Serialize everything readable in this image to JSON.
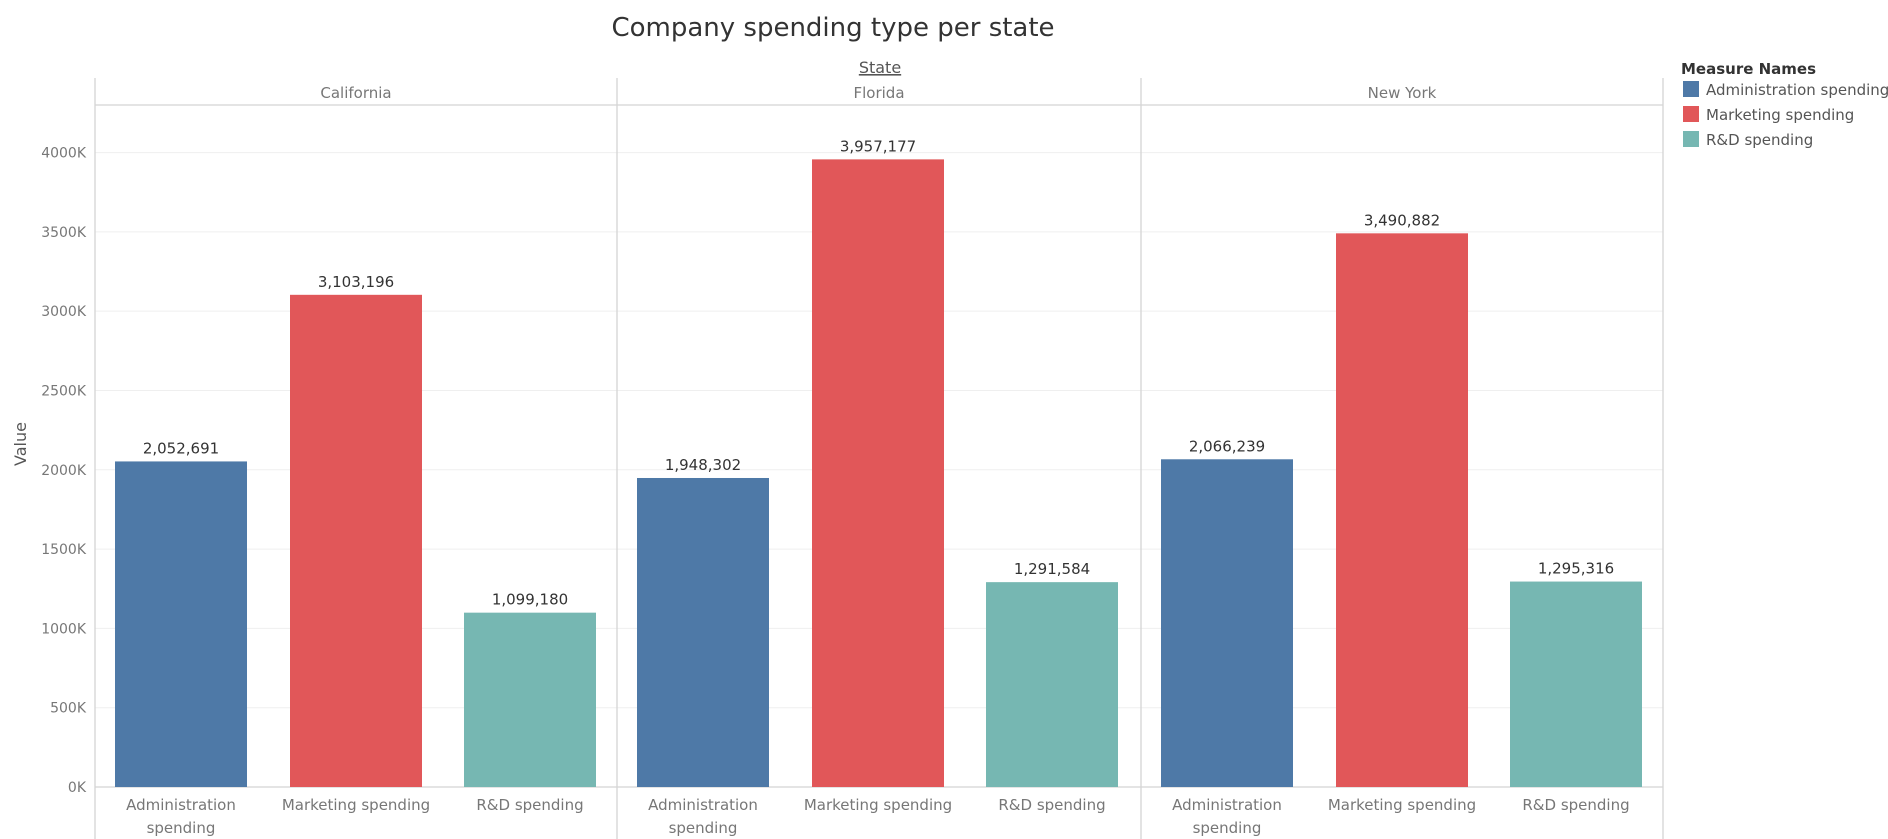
{
  "chart_data": {
    "type": "bar",
    "title": "Company spending type per state",
    "column_header": "State",
    "ylabel": "Value",
    "ylim": [
      0,
      4300000
    ],
    "yticks": [
      0,
      500000,
      1000000,
      1500000,
      2000000,
      2500000,
      3000000,
      3500000,
      4000000
    ],
    "ytick_labels": [
      "0K",
      "500K",
      "1000K",
      "1500K",
      "2000K",
      "2500K",
      "3000K",
      "3500K",
      "4000K"
    ],
    "grid": true,
    "categories": [
      "Administration spending",
      "Marketing spending",
      "R&D spending"
    ],
    "category_labels": [
      [
        "Administration",
        "spending"
      ],
      [
        "Marketing spending"
      ],
      [
        "R&D spending"
      ]
    ],
    "colors": [
      "#4e79a7",
      "#e15759",
      "#76b7b2"
    ],
    "panels": [
      {
        "name": "California",
        "values": [
          2052691,
          3103196,
          1099180
        ],
        "labels": [
          "2,052,691",
          "3,103,196",
          "1,099,180"
        ]
      },
      {
        "name": "Florida",
        "values": [
          1948302,
          3957177,
          1291584
        ],
        "labels": [
          "1,948,302",
          "3,957,177",
          "1,291,584"
        ]
      },
      {
        "name": "New York",
        "values": [
          2066239,
          3490882,
          1295316
        ],
        "labels": [
          "2,066,239",
          "3,490,882",
          "1,295,316"
        ]
      }
    ],
    "legend": {
      "title": "Measure Names",
      "position": "right",
      "items": [
        "Administration spending",
        "Marketing spending",
        "R&D spending"
      ]
    }
  }
}
